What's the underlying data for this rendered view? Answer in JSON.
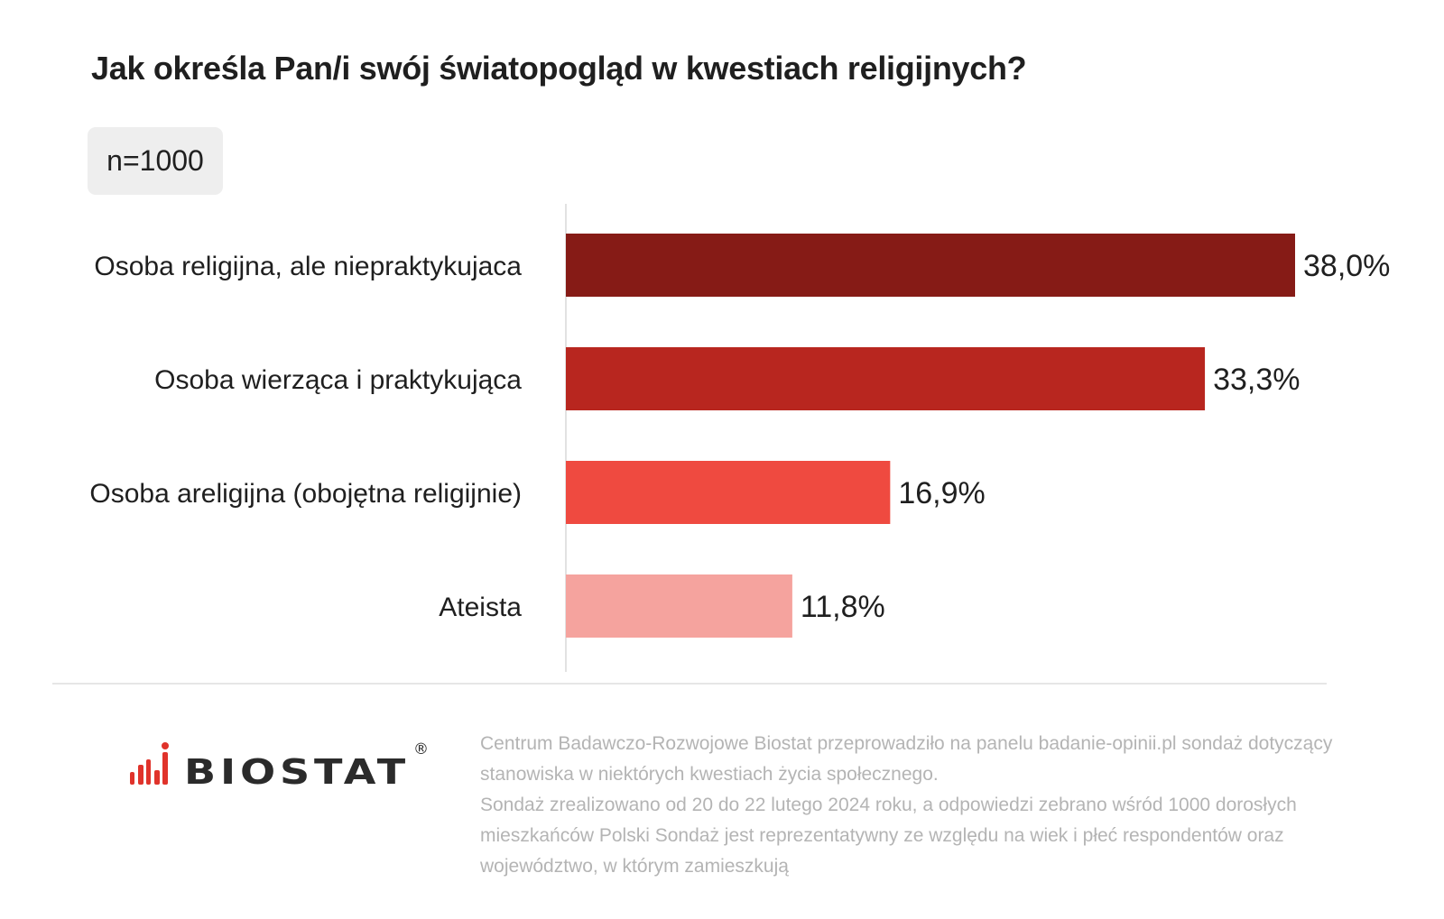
{
  "header": {
    "title": "Jak określa Pan/i swój światopogląd w kwestiach religijnych?",
    "sample": "n=1000"
  },
  "chart_data": {
    "type": "bar",
    "orientation": "horizontal",
    "title": "Jak określa Pan/i swój światopogląd w kwestiach religijnych?",
    "categories": [
      "Osoba religijna, ale niepraktykujaca",
      "Osoba wierząca i praktykująca",
      "Osoba areligijna (obojętna religijnie)",
      "Ateista"
    ],
    "values": [
      38.0,
      33.3,
      16.9,
      11.8
    ],
    "value_labels": [
      "38,0%",
      "33,3%",
      "16,9%",
      "11,8%"
    ],
    "bar_colors": [
      "#861b16",
      "#b8261f",
      "#ef4a40",
      "#f5a39e"
    ],
    "xlim": [
      0,
      38.0
    ],
    "grid": false,
    "legend": "none",
    "xlabel": "",
    "ylabel": ""
  },
  "footer": {
    "brand": "BIOSTAT",
    "brand_mark": "®",
    "brand_colors": {
      "bars": "#e0332b",
      "wordmark": "#2b2b2b"
    },
    "note_line1": "Centrum Badawczo-Rozwojowe Biostat przeprowadziło na panelu badanie-opinii.pl sondaż dotyczący stanowiska w niektórych kwestiach życia społecznego.",
    "note_line2": "Sondaż zrealizowano od 20 do 22 lutego 2024 roku, a odpowiedzi zebrano wśród 1000 dorosłych mieszkańców Polski Sondaż jest reprezentatywny ze względu na wiek i płeć respondentów oraz województwo, w którym zamieszkują"
  }
}
